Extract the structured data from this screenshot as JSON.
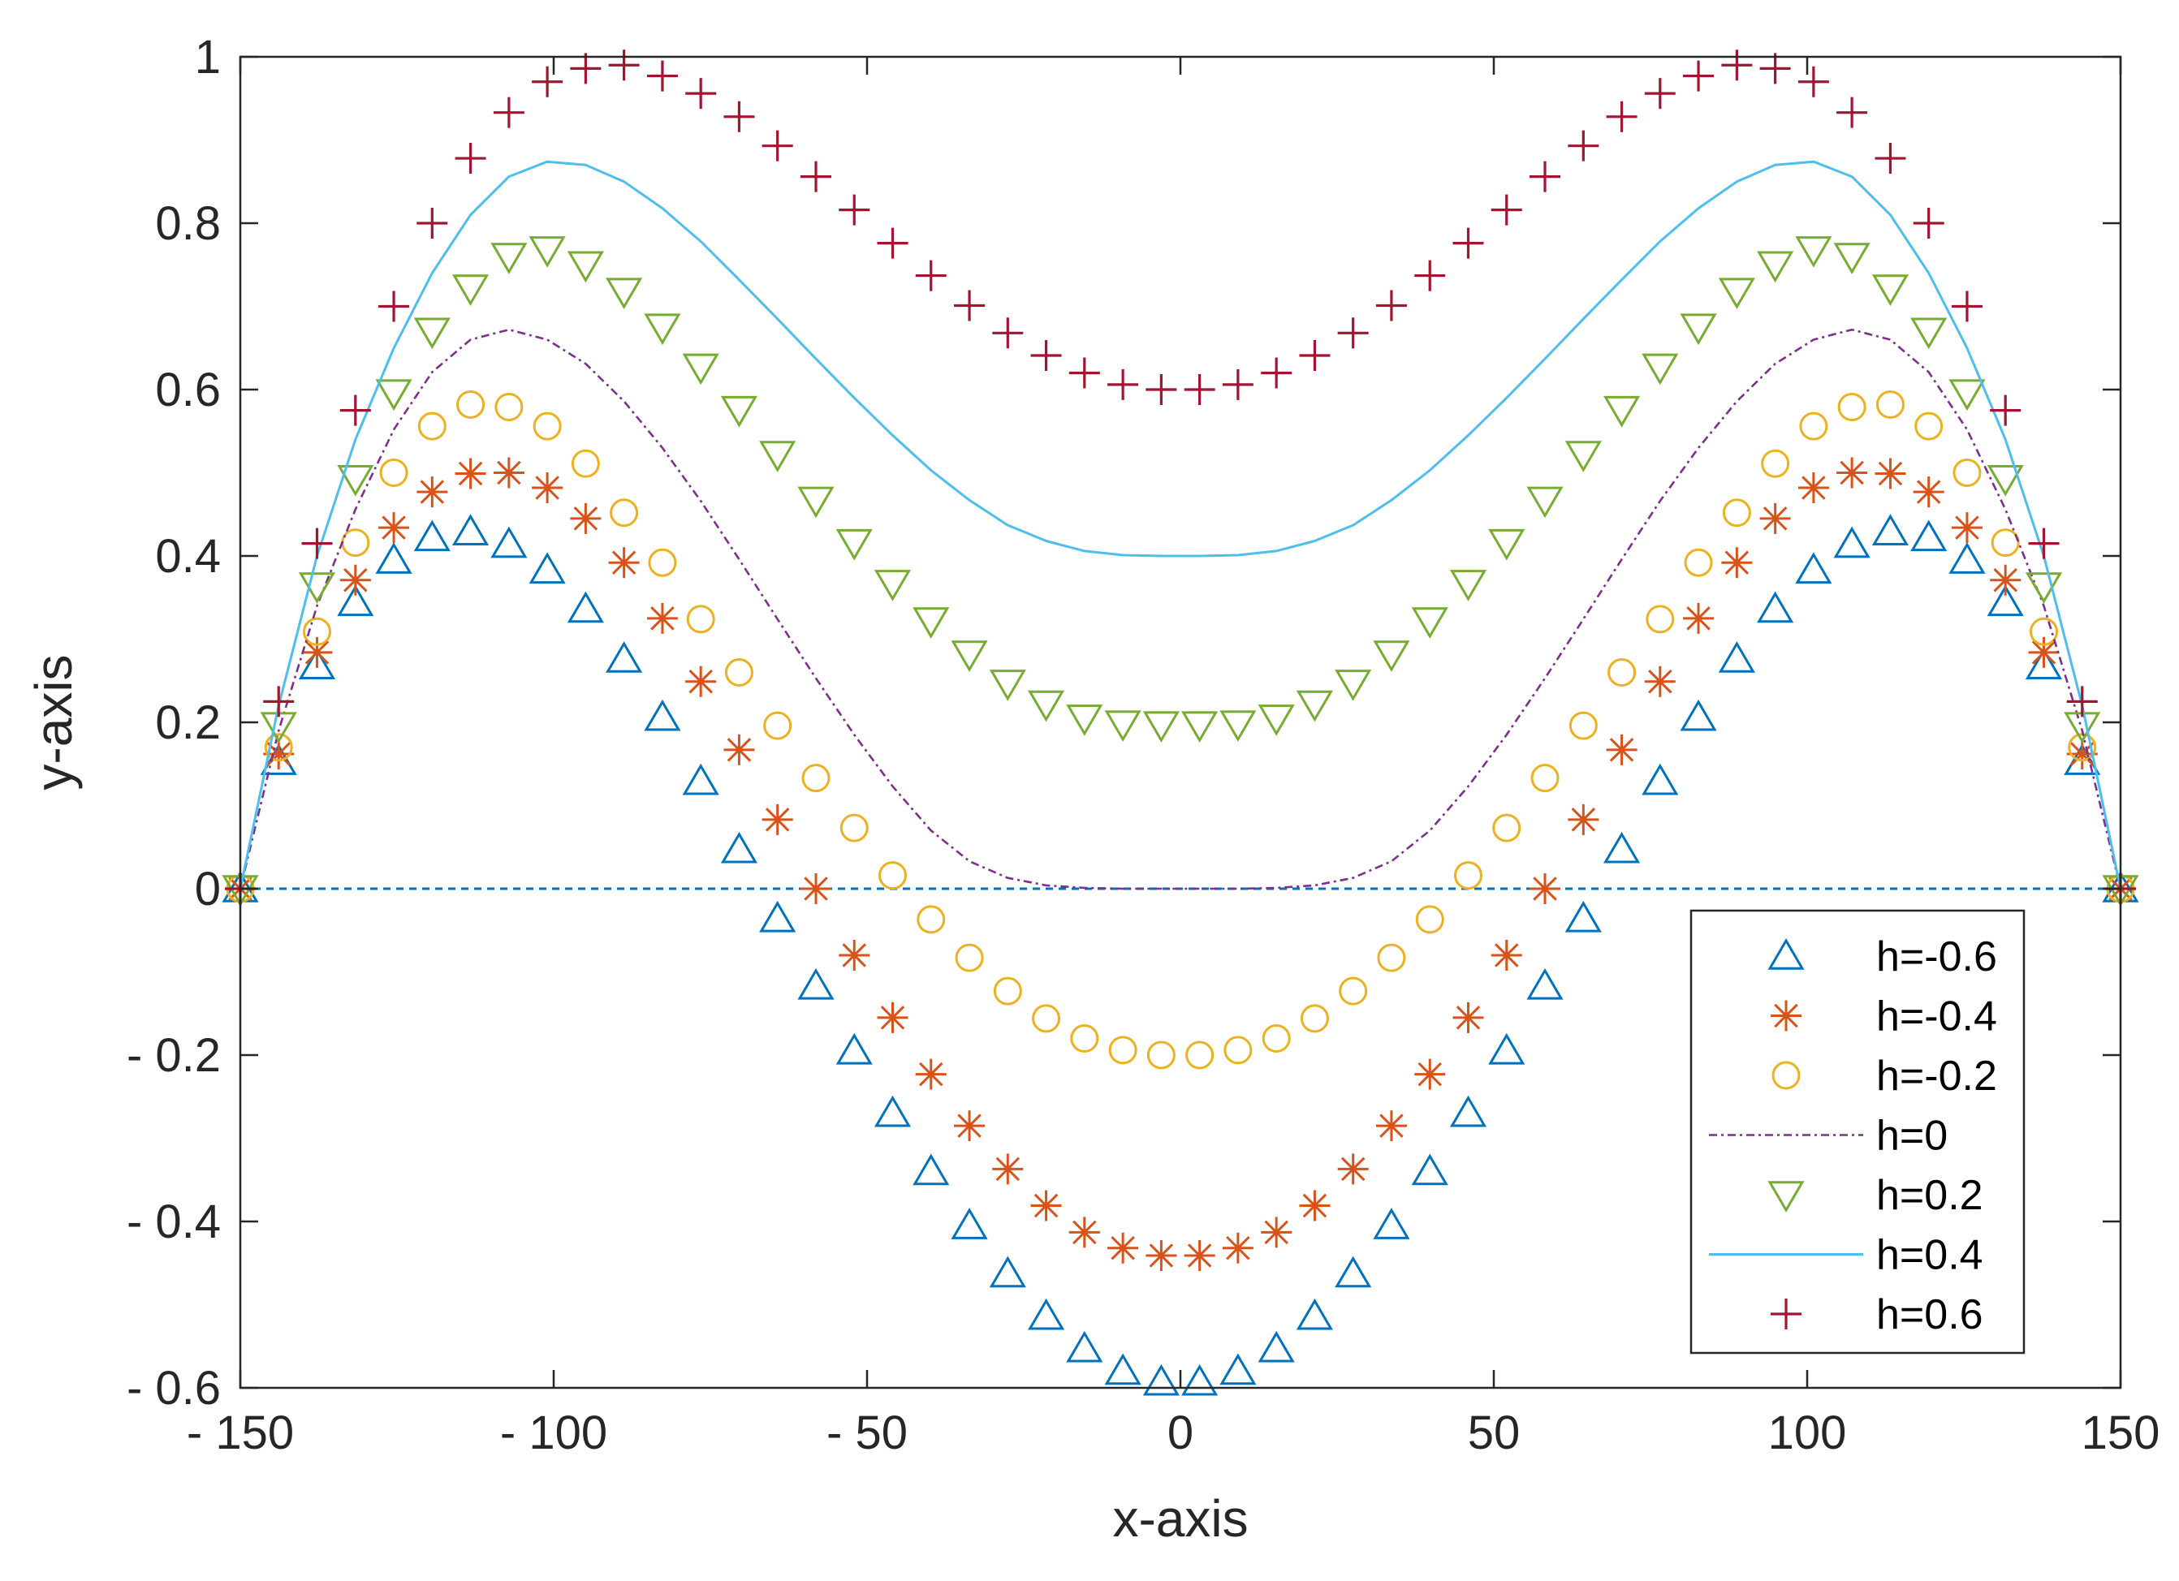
{
  "chart_data": {
    "type": "scatter",
    "title": "",
    "xlabel": "x-axis",
    "ylabel": "y-axis",
    "xlim": [
      -150,
      150
    ],
    "ylim": [
      -0.6,
      1
    ],
    "xticks": [
      -150,
      -100,
      -50,
      0,
      50,
      100,
      150
    ],
    "yticks": [
      -0.6,
      -0.4,
      -0.2,
      0,
      0.2,
      0.4,
      0.6,
      0.8,
      1
    ],
    "xtick_labels": [
      "- 150",
      "- 100",
      "- 50",
      "0",
      "50",
      "100",
      "150"
    ],
    "ytick_labels": [
      "- 0.6",
      "- 0.4",
      "- 0.2",
      "0",
      "0.2",
      "0.4",
      "0.6",
      "0.8",
      "1"
    ],
    "grid": false,
    "legend_position": "bottom-right",
    "x": [
      -150.0,
      -143.88,
      -137.76,
      -131.63,
      -125.51,
      -119.39,
      -113.27,
      -107.14,
      -101.02,
      -94.9,
      -88.78,
      -82.65,
      -76.53,
      -70.41,
      -64.29,
      -58.16,
      -52.04,
      -45.92,
      -39.8,
      -33.67,
      -27.55,
      -21.43,
      -15.31,
      -9.18,
      -3.06,
      3.06,
      9.18,
      15.31,
      21.43,
      27.55,
      33.67,
      39.8,
      45.92,
      52.04,
      58.16,
      64.29,
      70.41,
      76.53,
      82.65,
      88.78,
      94.9,
      101.02,
      107.14,
      113.27,
      119.39,
      125.51,
      131.63,
      137.76,
      143.88,
      150.0
    ],
    "reference_line": {
      "y": 0,
      "style": "dashed",
      "color": "#0072BD"
    },
    "series": [
      {
        "name": "h=-0.6",
        "marker": "triangle-up",
        "line": "none",
        "color": "#0072BD",
        "values": [
          0.0,
          0.153,
          0.268,
          0.344,
          0.395,
          0.422,
          0.429,
          0.414,
          0.383,
          0.336,
          0.276,
          0.206,
          0.129,
          0.047,
          -0.036,
          -0.117,
          -0.195,
          -0.27,
          -0.34,
          -0.405,
          -0.463,
          -0.514,
          -0.553,
          -0.58,
          -0.593,
          -0.593,
          -0.58,
          -0.553,
          -0.514,
          -0.463,
          -0.405,
          -0.34,
          -0.27,
          -0.195,
          -0.117,
          -0.036,
          0.047,
          0.129,
          0.206,
          0.276,
          0.336,
          0.383,
          0.414,
          0.429,
          0.422,
          0.395,
          0.344,
          0.268,
          0.153,
          0.0
        ]
      },
      {
        "name": "h=-0.4",
        "marker": "asterisk",
        "line": "none",
        "color": "#D95319",
        "values": [
          0.0,
          0.162,
          0.284,
          0.371,
          0.434,
          0.477,
          0.499,
          0.5,
          0.482,
          0.445,
          0.392,
          0.325,
          0.249,
          0.167,
          0.083,
          0.0,
          -0.08,
          -0.155,
          -0.223,
          -0.285,
          -0.337,
          -0.381,
          -0.413,
          -0.432,
          -0.441,
          -0.441,
          -0.432,
          -0.413,
          -0.381,
          -0.337,
          -0.285,
          -0.223,
          -0.155,
          -0.08,
          0.0,
          0.083,
          0.167,
          0.249,
          0.325,
          0.392,
          0.445,
          0.482,
          0.5,
          0.499,
          0.477,
          0.434,
          0.371,
          0.284,
          0.162,
          0.0
        ]
      },
      {
        "name": "h=-0.2",
        "marker": "circle",
        "line": "none",
        "color": "#EDB120",
        "values": [
          0.0,
          0.17,
          0.309,
          0.416,
          0.5,
          0.556,
          0.582,
          0.579,
          0.556,
          0.511,
          0.452,
          0.392,
          0.324,
          0.26,
          0.196,
          0.133,
          0.073,
          0.016,
          -0.037,
          -0.083,
          -0.123,
          -0.156,
          -0.18,
          -0.194,
          -0.2,
          -0.2,
          -0.194,
          -0.18,
          -0.156,
          -0.123,
          -0.083,
          -0.037,
          0.016,
          0.073,
          0.133,
          0.196,
          0.26,
          0.324,
          0.392,
          0.452,
          0.511,
          0.556,
          0.579,
          0.582,
          0.556,
          0.5,
          0.416,
          0.309,
          0.17,
          0.0
        ]
      },
      {
        "name": "h=0",
        "marker": "none",
        "line": "dash-dot",
        "color": "#7E2F8E",
        "values": [
          0.0,
          0.19,
          0.34,
          0.456,
          0.552,
          0.621,
          0.66,
          0.672,
          0.66,
          0.631,
          0.586,
          0.53,
          0.466,
          0.396,
          0.324,
          0.253,
          0.185,
          0.123,
          0.07,
          0.033,
          0.013,
          0.004,
          0.001,
          0.0,
          0.0,
          0.0,
          0.0,
          0.001,
          0.004,
          0.013,
          0.033,
          0.07,
          0.123,
          0.185,
          0.253,
          0.324,
          0.396,
          0.466,
          0.53,
          0.586,
          0.631,
          0.66,
          0.672,
          0.66,
          0.621,
          0.552,
          0.456,
          0.34,
          0.19,
          0.0
        ]
      },
      {
        "name": "h=0.2",
        "marker": "triangle-down",
        "line": "none",
        "color": "#77AC30",
        "values": [
          0.0,
          0.196,
          0.364,
          0.493,
          0.596,
          0.67,
          0.722,
          0.76,
          0.768,
          0.75,
          0.718,
          0.675,
          0.627,
          0.576,
          0.522,
          0.467,
          0.416,
          0.367,
          0.322,
          0.282,
          0.247,
          0.222,
          0.205,
          0.198,
          0.197,
          0.197,
          0.198,
          0.205,
          0.222,
          0.247,
          0.282,
          0.322,
          0.367,
          0.416,
          0.467,
          0.522,
          0.576,
          0.627,
          0.675,
          0.718,
          0.75,
          0.768,
          0.76,
          0.722,
          0.67,
          0.596,
          0.493,
          0.364,
          0.196,
          0.0
        ]
      },
      {
        "name": "h=0.4",
        "marker": "none",
        "line": "solid",
        "color": "#4DBEEE",
        "values": [
          0.0,
          0.22,
          0.4,
          0.54,
          0.65,
          0.74,
          0.81,
          0.856,
          0.874,
          0.87,
          0.85,
          0.818,
          0.778,
          0.732,
          0.685,
          0.637,
          0.59,
          0.545,
          0.503,
          0.467,
          0.437,
          0.418,
          0.406,
          0.401,
          0.4,
          0.4,
          0.401,
          0.406,
          0.418,
          0.437,
          0.467,
          0.503,
          0.545,
          0.59,
          0.637,
          0.685,
          0.732,
          0.778,
          0.818,
          0.85,
          0.87,
          0.874,
          0.856,
          0.81,
          0.74,
          0.65,
          0.54,
          0.4,
          0.22,
          0.0
        ]
      },
      {
        "name": "h=0.6",
        "marker": "plus",
        "line": "none",
        "color": "#A2142F",
        "values": [
          0.0,
          0.225,
          0.415,
          0.575,
          0.7,
          0.8,
          0.878,
          0.933,
          0.97,
          0.986,
          0.99,
          0.977,
          0.956,
          0.928,
          0.893,
          0.856,
          0.816,
          0.776,
          0.737,
          0.701,
          0.668,
          0.641,
          0.62,
          0.606,
          0.6,
          0.6,
          0.606,
          0.62,
          0.641,
          0.668,
          0.701,
          0.737,
          0.776,
          0.816,
          0.856,
          0.893,
          0.928,
          0.956,
          0.977,
          0.99,
          0.986,
          0.97,
          0.933,
          0.878,
          0.8,
          0.7,
          0.575,
          0.415,
          0.225,
          0.0
        ]
      }
    ]
  }
}
